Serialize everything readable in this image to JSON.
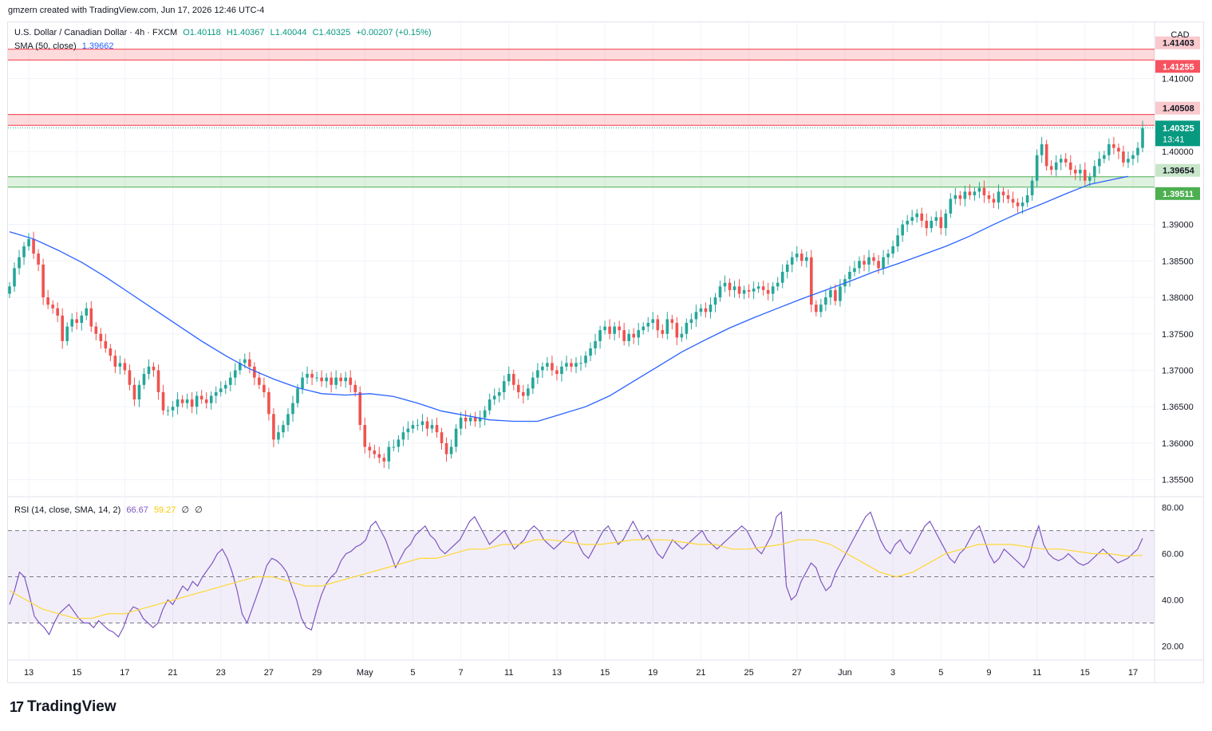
{
  "header": {
    "attribution": "gmzern created with TradingView.com, Jun 17, 2026 12:46 UTC-4"
  },
  "legend": {
    "symbol": "U.S. Dollar / Canadian Dollar · 4h · FXCM",
    "ohlc": {
      "o": "O1.40118",
      "h": "H1.40367",
      "l": "L1.40044",
      "c": "C1.40325",
      "chg": "+0.00207 (+0.15%)"
    },
    "sma_label": "SMA (50, close)",
    "sma_value": "1.39662",
    "rsi_label": "RSI (14, close, SMA, 14, 2)",
    "rsi_value": "66.67",
    "rsi_sma_value": "59.27",
    "rsi_extra1": "∅",
    "rsi_extra2": "∅"
  },
  "currency": "CAD",
  "branding": {
    "logo_mark": "17",
    "logo_text": "TradingView"
  },
  "colors": {
    "up": "#26a69a",
    "down": "#ef5350",
    "sma": "#2962ff",
    "rsi": "#7e57c2",
    "rsi_sma": "#fdd835",
    "resistance": "#f23645",
    "support": "#4caf50",
    "grid": "#f0f3fa"
  },
  "chart_data": [
    {
      "type": "candlestick",
      "title": "U.S. Dollar / Canadian Dollar · 4h · FXCM",
      "ylim": [
        1.353,
        1.4175
      ],
      "price_ticks": [
        "1.41000",
        "1.40000",
        "1.39000",
        "1.38500",
        "1.38000",
        "1.37500",
        "1.37000",
        "1.36500",
        "1.36000",
        "1.35500"
      ],
      "x_ticks": [
        "13",
        "15",
        "17",
        "21",
        "23",
        "27",
        "29",
        "May",
        "5",
        "7",
        "11",
        "13",
        "15",
        "19",
        "21",
        "25",
        "27",
        "Jun",
        "3",
        "5",
        "9",
        "11",
        "15",
        "17"
      ],
      "x_tick_bar_index": [
        4,
        14,
        24,
        34,
        44,
        54,
        64,
        74,
        84,
        94,
        104,
        114,
        124,
        134,
        144,
        154,
        164,
        174,
        184,
        194,
        204,
        214,
        224,
        234
      ],
      "zones": [
        {
          "name": "resistance-upper",
          "from": 1.41255,
          "to": 1.41403,
          "labels": [
            "1.41403",
            "1.41255"
          ]
        },
        {
          "name": "resistance-lower",
          "from": 1.40359,
          "to": 1.40508,
          "labels": [
            "1.40508",
            "1.40359"
          ]
        },
        {
          "name": "support",
          "from": 1.39511,
          "to": 1.39654,
          "labels": [
            "1.39654",
            "1.39511"
          ]
        }
      ],
      "last_price": {
        "value": 1.40325,
        "label": "1.40325",
        "countdown": "13:41"
      },
      "closes": [
        1.3815,
        1.384,
        1.3855,
        1.387,
        1.388,
        1.386,
        1.3845,
        1.38,
        1.379,
        1.3785,
        1.3775,
        1.374,
        1.376,
        1.377,
        1.3765,
        1.3775,
        1.3785,
        1.376,
        1.375,
        1.374,
        1.373,
        1.372,
        1.3705,
        1.371,
        1.37,
        1.368,
        1.366,
        1.368,
        1.3695,
        1.3705,
        1.37,
        1.367,
        1.3645,
        1.3645,
        1.365,
        1.366,
        1.3655,
        1.366,
        1.365,
        1.3665,
        1.366,
        1.3655,
        1.3665,
        1.367,
        1.3675,
        1.368,
        1.369,
        1.37,
        1.371,
        1.3715,
        1.3705,
        1.369,
        1.368,
        1.367,
        1.364,
        1.3605,
        1.3615,
        1.3625,
        1.364,
        1.3655,
        1.3675,
        1.369,
        1.3695,
        1.369,
        1.369,
        1.3685,
        1.369,
        1.368,
        1.369,
        1.3685,
        1.369,
        1.368,
        1.367,
        1.3625,
        1.3595,
        1.359,
        1.3585,
        1.358,
        1.3575,
        1.3595,
        1.3595,
        1.3605,
        1.3615,
        1.362,
        1.3625,
        1.3625,
        1.363,
        1.362,
        1.3625,
        1.3615,
        1.36,
        1.3585,
        1.3595,
        1.362,
        1.3635,
        1.363,
        1.3635,
        1.363,
        1.3635,
        1.3645,
        1.366,
        1.3665,
        1.367,
        1.3685,
        1.3695,
        1.368,
        1.367,
        1.3665,
        1.3675,
        1.369,
        1.37,
        1.3705,
        1.371,
        1.37,
        1.3695,
        1.3705,
        1.371,
        1.3705,
        1.371,
        1.371,
        1.372,
        1.373,
        1.374,
        1.3755,
        1.376,
        1.375,
        1.376,
        1.3755,
        1.374,
        1.375,
        1.3745,
        1.3755,
        1.376,
        1.3765,
        1.377,
        1.3755,
        1.375,
        1.377,
        1.3765,
        1.3745,
        1.375,
        1.3765,
        1.377,
        1.378,
        1.3785,
        1.378,
        1.379,
        1.38,
        1.3815,
        1.382,
        1.381,
        1.3815,
        1.3805,
        1.381,
        1.3808,
        1.3812,
        1.3815,
        1.381,
        1.3805,
        1.3815,
        1.382,
        1.3835,
        1.3845,
        1.3855,
        1.386,
        1.385,
        1.3855,
        1.379,
        1.378,
        1.379,
        1.38,
        1.381,
        1.3795,
        1.3815,
        1.3825,
        1.3835,
        1.384,
        1.385,
        1.3845,
        1.3855,
        1.385,
        1.384,
        1.3855,
        1.386,
        1.387,
        1.3885,
        1.39,
        1.3905,
        1.391,
        1.3915,
        1.3905,
        1.3895,
        1.3905,
        1.391,
        1.3895,
        1.3915,
        1.3935,
        1.394,
        1.3935,
        1.3945,
        1.394,
        1.3945,
        1.395,
        1.394,
        1.3935,
        1.393,
        1.3945,
        1.394,
        1.3935,
        1.393,
        1.3925,
        1.393,
        1.394,
        1.396,
        1.3995,
        1.401,
        1.398,
        1.3975,
        1.3985,
        1.399,
        1.3985,
        1.3975,
        1.397,
        1.3975,
        1.396,
        1.3965,
        1.398,
        1.399,
        1.3995,
        1.401,
        1.4005,
        1.4,
        1.3985,
        1.399,
        1.3995,
        1.4005,
        1.4032
      ],
      "sma": [
        1.389,
        1.388,
        1.3865,
        1.3848,
        1.3828,
        1.3806,
        1.3784,
        1.3762,
        1.374,
        1.372,
        1.3702,
        1.3688,
        1.3676,
        1.3668,
        1.3666,
        1.3668,
        1.3664,
        1.3655,
        1.3644,
        1.3638,
        1.3632,
        1.363,
        1.363,
        1.364,
        1.365,
        1.3665,
        1.3685,
        1.3705,
        1.3725,
        1.3742,
        1.3758,
        1.3772,
        1.3785,
        1.3798,
        1.381,
        1.3822,
        1.3835,
        1.3846,
        1.3858,
        1.387,
        1.3884,
        1.39,
        1.3915,
        1.3928,
        1.3942,
        1.3955,
        1.3966
      ],
      "sma_bar_index": [
        0,
        5,
        10,
        15,
        20,
        25,
        30,
        35,
        40,
        45,
        50,
        55,
        60,
        65,
        70,
        75,
        80,
        85,
        90,
        95,
        100,
        105,
        110,
        115,
        120,
        125,
        130,
        135,
        140,
        145,
        150,
        155,
        160,
        165,
        170,
        175,
        180,
        185,
        190,
        195,
        200,
        205,
        210,
        215,
        220,
        225,
        233
      ]
    },
    {
      "type": "line",
      "title": "RSI (14, close, SMA, 14, 2)",
      "ylim": [
        15,
        84
      ],
      "y_ticks": [
        "80.00",
        "60.00",
        "40.00",
        "20.00"
      ],
      "bands": {
        "upper": 70,
        "middle": 50,
        "lower": 30
      },
      "series": [
        {
          "name": "RSI",
          "values": [
            38,
            44,
            52,
            50,
            42,
            33,
            30,
            28,
            25,
            30,
            34,
            36,
            38,
            35,
            32,
            30,
            30,
            28,
            31,
            29,
            27,
            26,
            24,
            28,
            34,
            37,
            36,
            32,
            30,
            28,
            30,
            36,
            40,
            38,
            42,
            46,
            44,
            48,
            46,
            50,
            53,
            56,
            60,
            62,
            58,
            52,
            44,
            34,
            30,
            36,
            42,
            48,
            55,
            58,
            57,
            55,
            52,
            46,
            40,
            32,
            28,
            27,
            35,
            42,
            47,
            50,
            52,
            57,
            60,
            61,
            63,
            64,
            66,
            72,
            74,
            70,
            66,
            60,
            54,
            58,
            62,
            64,
            68,
            70,
            72,
            68,
            66,
            62,
            60,
            62,
            64,
            66,
            70,
            74,
            76,
            72,
            68,
            64,
            66,
            68,
            70,
            66,
            62,
            64,
            66,
            70,
            72,
            70,
            66,
            64,
            62,
            64,
            66,
            68,
            70,
            64,
            60,
            58,
            62,
            66,
            70,
            72,
            68,
            64,
            66,
            70,
            74,
            70,
            66,
            68,
            64,
            60,
            58,
            62,
            66,
            64,
            62,
            64,
            66,
            68,
            70,
            66,
            64,
            62,
            64,
            66,
            68,
            70,
            72,
            70,
            66,
            62,
            60,
            64,
            68,
            76,
            78,
            46,
            40,
            42,
            48,
            52,
            56,
            54,
            48,
            44,
            46,
            52,
            56,
            60,
            64,
            68,
            72,
            76,
            78,
            72,
            66,
            62,
            60,
            64,
            66,
            62,
            60,
            64,
            68,
            72,
            74,
            70,
            66,
            62,
            58,
            56,
            60,
            62,
            66,
            70,
            72,
            66,
            60,
            56,
            58,
            62,
            60,
            58,
            56,
            54,
            58,
            66,
            72,
            64,
            60,
            58,
            57,
            58,
            60,
            58,
            56,
            55,
            56,
            58,
            60,
            62,
            60,
            58,
            56,
            57,
            58,
            60,
            62,
            66.67
          ]
        },
        {
          "name": "RSI-based MA",
          "values": [
            44,
            40,
            36,
            34,
            32,
            32,
            34,
            34,
            36,
            38,
            40,
            42,
            44,
            46,
            48,
            50,
            50,
            48,
            46,
            46,
            48,
            50,
            52,
            54,
            56,
            58,
            58,
            60,
            62,
            62,
            64,
            64,
            66,
            66,
            65,
            64,
            64,
            65,
            66,
            66,
            66,
            65,
            64,
            64,
            62,
            62,
            63,
            64,
            66,
            66,
            64,
            60,
            56,
            52,
            50,
            52,
            56,
            60,
            62,
            64,
            64,
            64,
            63,
            62,
            62,
            61,
            60,
            60,
            59,
            59.27
          ]
        }
      ]
    }
  ]
}
